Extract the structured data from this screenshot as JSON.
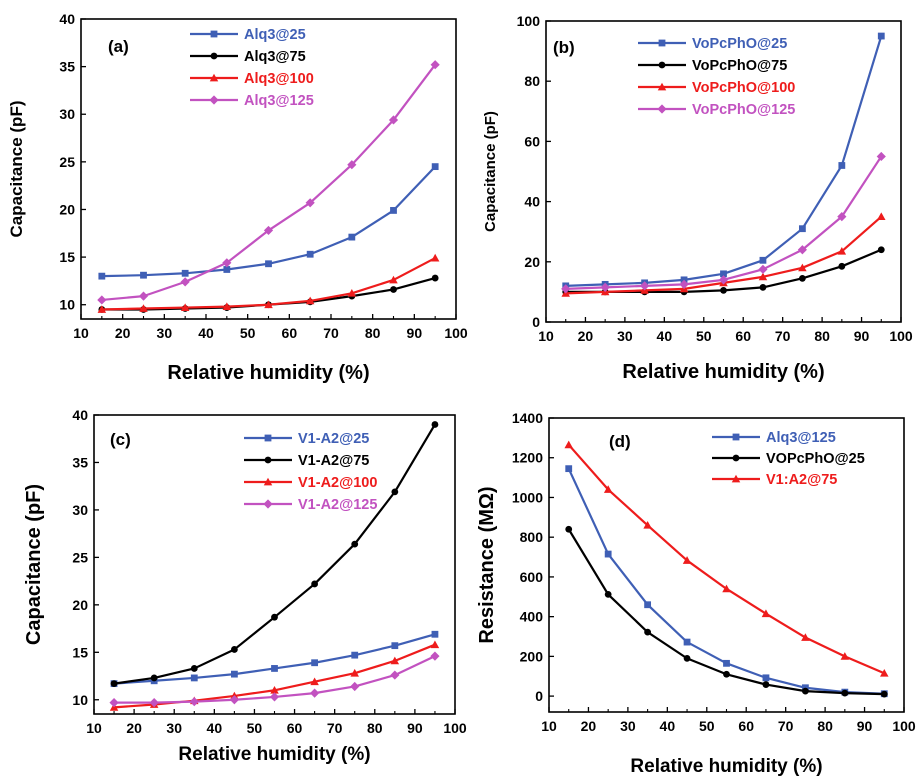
{
  "figure": {
    "background": "#ffffff"
  },
  "colors": {
    "blue": "#3f5fb5",
    "black": "#000000",
    "red": "#ee1c1c",
    "magenta": "#c252c0"
  },
  "chart_data": [
    {
      "panel": "(a)",
      "type": "line",
      "xlabel": "Relative humidity (%)",
      "ylabel": "Capacitance (pF)",
      "xlim": [
        10,
        100
      ],
      "ylim": [
        8.5,
        40
      ],
      "xticks": [
        10,
        20,
        30,
        40,
        50,
        60,
        70,
        80,
        90,
        100
      ],
      "yticks": [
        10,
        15,
        20,
        25,
        30,
        35,
        40
      ],
      "legend_position": "top-center",
      "x": [
        15,
        25,
        35,
        45,
        55,
        65,
        75,
        85,
        95
      ],
      "series": [
        {
          "name": "Alq3@25",
          "color": "#3f5fb5",
          "marker": "square",
          "values": [
            13.0,
            13.1,
            13.3,
            13.7,
            14.3,
            15.3,
            17.1,
            19.9,
            24.5
          ]
        },
        {
          "name": "Alq3@75",
          "color": "#000000",
          "marker": "circle",
          "values": [
            9.5,
            9.5,
            9.6,
            9.7,
            10.0,
            10.3,
            10.9,
            11.6,
            12.8
          ]
        },
        {
          "name": "Alq3@100",
          "color": "#ee1c1c",
          "marker": "triangle",
          "values": [
            9.5,
            9.6,
            9.7,
            9.8,
            10.0,
            10.4,
            11.2,
            12.6,
            14.9
          ]
        },
        {
          "name": "Alq3@125",
          "color": "#c252c0",
          "marker": "diamond",
          "values": [
            10.5,
            10.9,
            12.4,
            14.4,
            17.8,
            20.7,
            24.7,
            29.4,
            35.2
          ]
        }
      ]
    },
    {
      "panel": "(b)",
      "type": "line",
      "xlabel": "Relative humidity (%)",
      "ylabel": "Capacitance (pF)",
      "xlim": [
        10,
        100
      ],
      "ylim": [
        0,
        100
      ],
      "xticks": [
        10,
        20,
        30,
        40,
        50,
        60,
        70,
        80,
        90,
        100
      ],
      "yticks": [
        0,
        20,
        40,
        60,
        80,
        100
      ],
      "legend_position": "top-center",
      "x": [
        15,
        25,
        35,
        45,
        55,
        65,
        75,
        85,
        95
      ],
      "series": [
        {
          "name": "VoPcPhO@25",
          "color": "#3f5fb5",
          "marker": "square",
          "values": [
            12,
            12.5,
            13,
            14,
            16,
            20.5,
            31,
            52,
            95
          ]
        },
        {
          "name": "VoPcPhO@75",
          "color": "#000000",
          "marker": "circle",
          "values": [
            10,
            10,
            10,
            10,
            10.5,
            11.5,
            14.5,
            18.5,
            24
          ]
        },
        {
          "name": "VoPcPhO@100",
          "color": "#ee1c1c",
          "marker": "triangle",
          "values": [
            9.5,
            10,
            10.5,
            11,
            13,
            15,
            18,
            23.5,
            35
          ]
        },
        {
          "name": "VoPcPhO@125",
          "color": "#c252c0",
          "marker": "diamond",
          "values": [
            11,
            11.5,
            12,
            12.5,
            14,
            17.5,
            24,
            35,
            55
          ]
        }
      ]
    },
    {
      "panel": "(c)",
      "type": "line",
      "xlabel": "Relative humidity (%)",
      "ylabel": "Capacitance (pF)",
      "xlim": [
        10,
        100
      ],
      "ylim": [
        8.5,
        40
      ],
      "xticks": [
        10,
        20,
        30,
        40,
        50,
        60,
        70,
        80,
        90,
        100
      ],
      "yticks": [
        10,
        15,
        20,
        25,
        30,
        35,
        40
      ],
      "legend_position": "top-center",
      "x": [
        15,
        25,
        35,
        45,
        55,
        65,
        75,
        85,
        95
      ],
      "series": [
        {
          "name": "V1-A2@25",
          "color": "#3f5fb5",
          "marker": "square",
          "values": [
            11.7,
            12.0,
            12.3,
            12.7,
            13.3,
            13.9,
            14.7,
            15.7,
            16.9
          ]
        },
        {
          "name": "V1-A2@75",
          "color": "#000000",
          "marker": "circle",
          "values": [
            11.7,
            12.3,
            13.3,
            15.3,
            18.7,
            22.2,
            26.4,
            31.9,
            39.0
          ]
        },
        {
          "name": "V1-A2@100",
          "color": "#ee1c1c",
          "marker": "triangle",
          "values": [
            9.2,
            9.5,
            9.9,
            10.4,
            11.0,
            11.9,
            12.8,
            14.1,
            15.8
          ]
        },
        {
          "name": "V1-A2@125",
          "color": "#c252c0",
          "marker": "diamond",
          "values": [
            9.7,
            9.7,
            9.8,
            10.0,
            10.3,
            10.7,
            11.4,
            12.6,
            14.6
          ]
        }
      ]
    },
    {
      "panel": "(d)",
      "type": "line",
      "xlabel": "Relative humidity (%)",
      "ylabel": "Resistance (MΩ)",
      "xlim": [
        10,
        100
      ],
      "ylim": [
        -80,
        1400
      ],
      "xticks": [
        10,
        20,
        30,
        40,
        50,
        60,
        70,
        80,
        90,
        100
      ],
      "yticks": [
        0,
        200,
        400,
        600,
        800,
        1000,
        1200,
        1400
      ],
      "legend_position": "top-center",
      "x": [
        15,
        25,
        35,
        45,
        55,
        65,
        75,
        85,
        95
      ],
      "series": [
        {
          "name": "Alq3@125",
          "color": "#3f5fb5",
          "marker": "square",
          "values": [
            1145,
            715,
            460,
            272,
            165,
            92,
            42,
            20,
            12
          ]
        },
        {
          "name": "VOPcPhO@25",
          "color": "#000000",
          "marker": "circle",
          "values": [
            840,
            512,
            322,
            190,
            110,
            58,
            25,
            15,
            10
          ]
        },
        {
          "name": "V1:A2@75",
          "color": "#ee1c1c",
          "marker": "triangle",
          "values": [
            1265,
            1040,
            860,
            683,
            540,
            415,
            295,
            200,
            115
          ]
        }
      ]
    }
  ]
}
